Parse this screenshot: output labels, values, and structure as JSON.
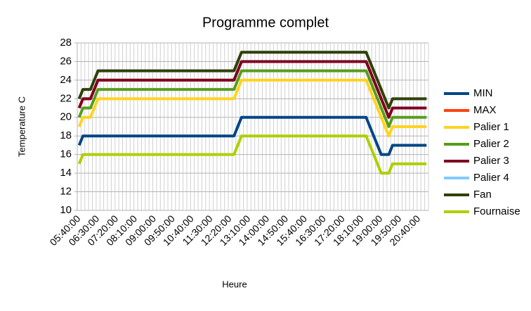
{
  "chart_data": {
    "type": "line",
    "title": "Programme complet",
    "x_label": "Heure",
    "y_label": "Temperature C",
    "categories": [
      "05:40:00",
      null,
      null,
      null,
      null,
      "06:30:00",
      null,
      null,
      null,
      null,
      "07:20:00",
      null,
      null,
      null,
      null,
      "08:10:00",
      null,
      null,
      null,
      null,
      "09:00:00",
      null,
      null,
      null,
      null,
      "09:50:00",
      null,
      null,
      null,
      null,
      "10:40:00",
      null,
      null,
      null,
      null,
      "11:30:00",
      null,
      null,
      null,
      null,
      "12:20:00",
      null,
      null,
      null,
      null,
      "13:10:00",
      null,
      null,
      null,
      null,
      "14:00:00",
      null,
      null,
      null,
      null,
      "14:50:00",
      null,
      null,
      null,
      null,
      "15:40:00",
      null,
      null,
      null,
      null,
      "16:30:00",
      null,
      null,
      null,
      null,
      "17:20:00",
      null,
      null,
      null,
      null,
      "18:10:00",
      null,
      null,
      null,
      null,
      "19:00:00",
      null,
      null,
      null,
      null,
      "19:50:00",
      null,
      null,
      null,
      null,
      "20:40:00",
      null,
      null
    ],
    "series": [
      {
        "name": "MIN",
        "color": "#004586",
        "values": [
          17,
          18,
          18,
          18,
          18,
          18,
          18,
          18,
          18,
          18,
          18,
          18,
          18,
          18,
          18,
          18,
          18,
          18,
          18,
          18,
          18,
          18,
          18,
          18,
          18,
          18,
          18,
          18,
          18,
          18,
          18,
          18,
          18,
          18,
          18,
          18,
          18,
          18,
          18,
          18,
          18,
          18,
          19,
          20,
          20,
          20,
          20,
          20,
          20,
          20,
          20,
          20,
          20,
          20,
          20,
          20,
          20,
          20,
          20,
          20,
          20,
          20,
          20,
          20,
          20,
          20,
          20,
          20,
          20,
          20,
          20,
          20,
          20,
          20,
          20,
          20,
          20,
          19,
          18,
          17,
          16,
          16,
          16,
          17,
          17,
          17,
          17,
          17,
          17,
          17,
          17,
          17,
          17
        ]
      },
      {
        "name": "MAX",
        "color": "#ff420e",
        "values": [
          21,
          22,
          22,
          22,
          23,
          24,
          24,
          24,
          24,
          24,
          24,
          24,
          24,
          24,
          24,
          24,
          24,
          24,
          24,
          24,
          24,
          24,
          24,
          24,
          24,
          24,
          24,
          24,
          24,
          24,
          24,
          24,
          24,
          24,
          24,
          24,
          24,
          24,
          24,
          24,
          24,
          24,
          25,
          26,
          26,
          26,
          26,
          26,
          26,
          26,
          26,
          26,
          26,
          26,
          26,
          26,
          26,
          26,
          26,
          26,
          26,
          26,
          26,
          26,
          26,
          26,
          26,
          26,
          26,
          26,
          26,
          26,
          26,
          26,
          26,
          26,
          26,
          25,
          24,
          23,
          22,
          21,
          20,
          21,
          21,
          21,
          21,
          21,
          21,
          21,
          21,
          21,
          21
        ]
      },
      {
        "name": "Palier 1",
        "color": "#ffd320",
        "values": [
          19,
          20,
          20,
          20,
          21,
          22,
          22,
          22,
          22,
          22,
          22,
          22,
          22,
          22,
          22,
          22,
          22,
          22,
          22,
          22,
          22,
          22,
          22,
          22,
          22,
          22,
          22,
          22,
          22,
          22,
          22,
          22,
          22,
          22,
          22,
          22,
          22,
          22,
          22,
          22,
          22,
          22,
          23,
          24,
          24,
          24,
          24,
          24,
          24,
          24,
          24,
          24,
          24,
          24,
          24,
          24,
          24,
          24,
          24,
          24,
          24,
          24,
          24,
          24,
          24,
          24,
          24,
          24,
          24,
          24,
          24,
          24,
          24,
          24,
          24,
          24,
          24,
          23,
          22,
          21,
          20,
          19,
          18,
          19,
          19,
          19,
          19,
          19,
          19,
          19,
          19,
          19,
          19
        ]
      },
      {
        "name": "Palier 2",
        "color": "#579d1c",
        "values": [
          20,
          21,
          21,
          21,
          22,
          23,
          23,
          23,
          23,
          23,
          23,
          23,
          23,
          23,
          23,
          23,
          23,
          23,
          23,
          23,
          23,
          23,
          23,
          23,
          23,
          23,
          23,
          23,
          23,
          23,
          23,
          23,
          23,
          23,
          23,
          23,
          23,
          23,
          23,
          23,
          23,
          23,
          24,
          25,
          25,
          25,
          25,
          25,
          25,
          25,
          25,
          25,
          25,
          25,
          25,
          25,
          25,
          25,
          25,
          25,
          25,
          25,
          25,
          25,
          25,
          25,
          25,
          25,
          25,
          25,
          25,
          25,
          25,
          25,
          25,
          25,
          25,
          24,
          23,
          22,
          21,
          20,
          19,
          20,
          20,
          20,
          20,
          20,
          20,
          20,
          20,
          20,
          20
        ]
      },
      {
        "name": "Palier 3",
        "color": "#7e0021",
        "values": [
          21,
          22,
          22,
          22,
          23,
          24,
          24,
          24,
          24,
          24,
          24,
          24,
          24,
          24,
          24,
          24,
          24,
          24,
          24,
          24,
          24,
          24,
          24,
          24,
          24,
          24,
          24,
          24,
          24,
          24,
          24,
          24,
          24,
          24,
          24,
          24,
          24,
          24,
          24,
          24,
          24,
          24,
          25,
          26,
          26,
          26,
          26,
          26,
          26,
          26,
          26,
          26,
          26,
          26,
          26,
          26,
          26,
          26,
          26,
          26,
          26,
          26,
          26,
          26,
          26,
          26,
          26,
          26,
          26,
          26,
          26,
          26,
          26,
          26,
          26,
          26,
          26,
          25,
          24,
          23,
          22,
          21,
          20,
          21,
          21,
          21,
          21,
          21,
          21,
          21,
          21,
          21,
          21
        ]
      },
      {
        "name": "Palier 4",
        "color": "#83caff",
        "values": [
          22,
          23,
          23,
          23,
          24,
          25,
          25,
          25,
          25,
          25,
          25,
          25,
          25,
          25,
          25,
          25,
          25,
          25,
          25,
          25,
          25,
          25,
          25,
          25,
          25,
          25,
          25,
          25,
          25,
          25,
          25,
          25,
          25,
          25,
          25,
          25,
          25,
          25,
          25,
          25,
          25,
          25,
          26,
          27,
          27,
          27,
          27,
          27,
          27,
          27,
          27,
          27,
          27,
          27,
          27,
          27,
          27,
          27,
          27,
          27,
          27,
          27,
          27,
          27,
          27,
          27,
          27,
          27,
          27,
          27,
          27,
          27,
          27,
          27,
          27,
          27,
          27,
          26,
          25,
          24,
          23,
          22,
          21,
          22,
          22,
          22,
          22,
          22,
          22,
          22,
          22,
          22,
          22
        ]
      },
      {
        "name": "Fan",
        "color": "#314004",
        "values": [
          22,
          23,
          23,
          23,
          24,
          25,
          25,
          25,
          25,
          25,
          25,
          25,
          25,
          25,
          25,
          25,
          25,
          25,
          25,
          25,
          25,
          25,
          25,
          25,
          25,
          25,
          25,
          25,
          25,
          25,
          25,
          25,
          25,
          25,
          25,
          25,
          25,
          25,
          25,
          25,
          25,
          25,
          26,
          27,
          27,
          27,
          27,
          27,
          27,
          27,
          27,
          27,
          27,
          27,
          27,
          27,
          27,
          27,
          27,
          27,
          27,
          27,
          27,
          27,
          27,
          27,
          27,
          27,
          27,
          27,
          27,
          27,
          27,
          27,
          27,
          27,
          27,
          26,
          25,
          24,
          23,
          22,
          21,
          22,
          22,
          22,
          22,
          22,
          22,
          22,
          22,
          22,
          22
        ]
      },
      {
        "name": "Fournaise",
        "color": "#aecf00",
        "values": [
          15,
          16,
          16,
          16,
          16,
          16,
          16,
          16,
          16,
          16,
          16,
          16,
          16,
          16,
          16,
          16,
          16,
          16,
          16,
          16,
          16,
          16,
          16,
          16,
          16,
          16,
          16,
          16,
          16,
          16,
          16,
          16,
          16,
          16,
          16,
          16,
          16,
          16,
          16,
          16,
          16,
          16,
          17,
          18,
          18,
          18,
          18,
          18,
          18,
          18,
          18,
          18,
          18,
          18,
          18,
          18,
          18,
          18,
          18,
          18,
          18,
          18,
          18,
          18,
          18,
          18,
          18,
          18,
          18,
          18,
          18,
          18,
          18,
          18,
          18,
          18,
          18,
          17,
          16,
          15,
          14,
          14,
          14,
          15,
          15,
          15,
          15,
          15,
          15,
          15,
          15,
          15,
          15
        ]
      }
    ],
    "ylim": [
      10,
      28
    ],
    "yticks": [
      10,
      12,
      14,
      16,
      18,
      20,
      22,
      24,
      26,
      28
    ],
    "grid": true,
    "legend": "right"
  }
}
